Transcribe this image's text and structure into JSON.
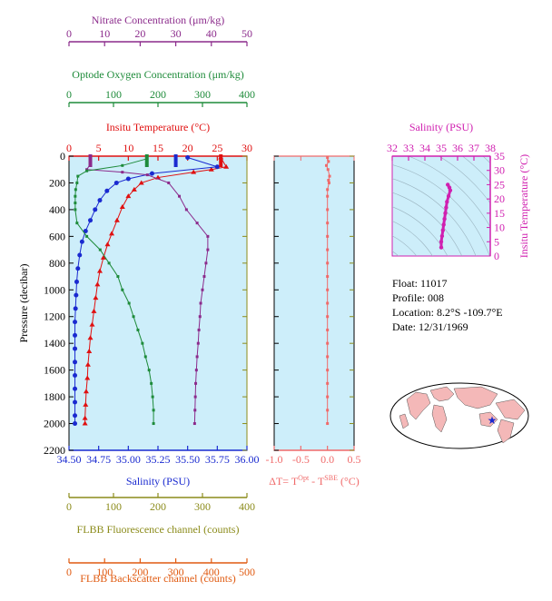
{
  "colors": {
    "nitrate": "#8b2a8b",
    "oxygen": "#1e8b3a",
    "temperature": "#e01010",
    "salinity": "#1a2ad0",
    "delta": "#f06a6a",
    "fluor": "#8b8b1a",
    "backscatter": "#e05a10",
    "inset": "#d020b0",
    "plot_bg": "#cdeefa",
    "land": "#f4b8b8"
  },
  "axes": {
    "nitrate": {
      "label": "Nitrate Concentration (μm/kg)",
      "ticks": [
        "0",
        "10",
        "20",
        "30",
        "40",
        "50"
      ]
    },
    "oxygen": {
      "label": "Optode Oxygen Concentration (μm/kg)",
      "ticks": [
        "0",
        "100",
        "200",
        "300",
        "400"
      ]
    },
    "temperature": {
      "label": "Insitu Temperature (°C)",
      "ticks": [
        "0",
        "5",
        "10",
        "15",
        "20",
        "25",
        "30"
      ]
    },
    "pressure": {
      "label": "Pressure (decibar)",
      "ticks": [
        "0",
        "200",
        "400",
        "600",
        "800",
        "1000",
        "1200",
        "1400",
        "1600",
        "1800",
        "2000",
        "2200"
      ]
    },
    "salinity": {
      "label": "Salinity (PSU)",
      "ticks": [
        "34.50",
        "34.75",
        "35.00",
        "35.25",
        "35.50",
        "35.75",
        "36.00"
      ]
    },
    "delta": {
      "ticks": [
        "-1.0",
        "-0.5",
        "0.0",
        "0.5"
      ],
      "label_pre": "ΔT= T",
      "sup1": "Opt",
      "label_mid": " - T",
      "sup2": "SBE",
      "label_post": " (°C)"
    },
    "fluor": {
      "label": "FLBB Fluorescence channel (counts)",
      "ticks": [
        "0",
        "100",
        "200",
        "300",
        "400"
      ]
    },
    "backscatter": {
      "label": "FLBB Backscatter channel (counts)",
      "ticks": [
        "0",
        "100",
        "200",
        "300",
        "400",
        "500"
      ]
    },
    "inset_salinity": {
      "label": "Salinity (PSU)",
      "ticks": [
        "32",
        "33",
        "34",
        "35",
        "36",
        "37",
        "38"
      ]
    },
    "inset_temperature": {
      "label": "Insitu Temperature (°C)",
      "ticks": [
        "0",
        "5",
        "10",
        "15",
        "20",
        "25",
        "30",
        "35"
      ]
    }
  },
  "info": {
    "float": "Float:  11017",
    "profile": "Profile:  008",
    "location": "Location:  8.2°S  -109.7°E",
    "date": "Date:  12/31/1969"
  },
  "chart_data": [
    {
      "type": "line",
      "title": "",
      "ylabel": "Pressure (decibar)",
      "ylim": [
        2200,
        0
      ],
      "series": [
        {
          "name": "Insitu Temperature (°C)",
          "xlim": [
            0,
            30
          ],
          "points": [
            [
              25.6,
              10
            ],
            [
              26.5,
              80
            ],
            [
              24,
              100
            ],
            [
              21,
              120
            ],
            [
              15,
              160
            ],
            [
              12.2,
              200
            ],
            [
              11,
              250
            ],
            [
              10,
              300
            ],
            [
              9,
              380
            ],
            [
              8.1,
              480
            ],
            [
              7.2,
              580
            ],
            [
              6.5,
              660
            ],
            [
              5.8,
              760
            ],
            [
              5.2,
              860
            ],
            [
              4.8,
              960
            ],
            [
              4.5,
              1060
            ],
            [
              4.2,
              1160
            ],
            [
              3.9,
              1260
            ],
            [
              3.6,
              1360
            ],
            [
              3.4,
              1460
            ],
            [
              3.2,
              1560
            ],
            [
              3.1,
              1660
            ],
            [
              2.9,
              1760
            ],
            [
              2.8,
              1860
            ],
            [
              2.7,
              1960
            ],
            [
              2.7,
              2000
            ]
          ]
        },
        {
          "name": "Salinity (PSU)",
          "xlim": [
            34.5,
            36.0
          ],
          "points": [
            [
              35.5,
              10
            ],
            [
              35.75,
              80
            ],
            [
              35.2,
              130
            ],
            [
              35.0,
              170
            ],
            [
              34.9,
              200
            ],
            [
              34.82,
              260
            ],
            [
              34.76,
              330
            ],
            [
              34.72,
              400
            ],
            [
              34.68,
              480
            ],
            [
              34.64,
              560
            ],
            [
              34.61,
              640
            ],
            [
              34.59,
              740
            ],
            [
              34.575,
              840
            ],
            [
              34.565,
              940
            ],
            [
              34.56,
              1040
            ],
            [
              34.555,
              1140
            ],
            [
              34.55,
              1240
            ],
            [
              34.55,
              1340
            ],
            [
              34.55,
              1440
            ],
            [
              34.55,
              1540
            ],
            [
              34.55,
              1640
            ],
            [
              34.55,
              1740
            ],
            [
              34.55,
              1840
            ],
            [
              34.55,
              1940
            ],
            [
              34.55,
              2000
            ]
          ]
        },
        {
          "name": "Nitrate Concentration (μm/kg)",
          "xlim": [
            0,
            50
          ],
          "points": [
            [
              6,
              20
            ],
            [
              6,
              60
            ],
            [
              5,
              100
            ],
            [
              15,
              120
            ],
            [
              22,
              140
            ],
            [
              28,
              200
            ],
            [
              31,
              300
            ],
            [
              33,
              400
            ],
            [
              36,
              500
            ],
            [
              39,
              600
            ],
            [
              39,
              700
            ],
            [
              38.5,
              800
            ],
            [
              38,
              900
            ],
            [
              37.5,
              1000
            ],
            [
              37,
              1100
            ],
            [
              36.8,
              1200
            ],
            [
              36.5,
              1300
            ],
            [
              36.3,
              1400
            ],
            [
              36,
              1500
            ],
            [
              35.8,
              1600
            ],
            [
              35.6,
              1700
            ],
            [
              35.5,
              1800
            ],
            [
              35.4,
              1900
            ],
            [
              35.3,
              2000
            ]
          ]
        },
        {
          "name": "Optode Oxygen Concentration (μm/kg)",
          "xlim": [
            0,
            400
          ],
          "points": [
            [
              175,
              20
            ],
            [
              120,
              70
            ],
            [
              40,
              110
            ],
            [
              20,
              150
            ],
            [
              18,
              200
            ],
            [
              15,
              250
            ],
            [
              14,
              300
            ],
            [
              14,
              350
            ],
            [
              14,
              400
            ],
            [
              18,
              500
            ],
            [
              40,
              600
            ],
            [
              70,
              700
            ],
            [
              90,
              800
            ],
            [
              110,
              900
            ],
            [
              120,
              1000
            ],
            [
              135,
              1100
            ],
            [
              145,
              1200
            ],
            [
              155,
              1300
            ],
            [
              165,
              1400
            ],
            [
              172,
              1500
            ],
            [
              180,
              1600
            ],
            [
              185,
              1700
            ],
            [
              188,
              1800
            ],
            [
              190,
              1900
            ],
            [
              190,
              2000
            ]
          ]
        },
        {
          "name": "ΔT",
          "xlim": [
            -1.0,
            0.5
          ],
          "points": [
            [
              0,
              10
            ],
            [
              0.02,
              40
            ],
            [
              -0.02,
              70
            ],
            [
              0.01,
              100
            ],
            [
              0.04,
              150
            ],
            [
              0.02,
              180
            ],
            [
              0.03,
              200
            ],
            [
              0,
              250
            ],
            [
              0,
              300
            ],
            [
              0,
              400
            ],
            [
              0,
              500
            ],
            [
              0,
              600
            ],
            [
              0,
              700
            ],
            [
              0,
              800
            ],
            [
              0,
              900
            ],
            [
              0,
              1000
            ],
            [
              0,
              1100
            ],
            [
              0,
              1200
            ],
            [
              0,
              1300
            ],
            [
              0,
              1400
            ],
            [
              0,
              1500
            ],
            [
              0,
              1600
            ],
            [
              0,
              1700
            ],
            [
              0,
              1800
            ],
            [
              0,
              1900
            ],
            [
              0,
              2000
            ]
          ]
        }
      ]
    },
    {
      "type": "scatter",
      "title": "",
      "xlabel": "Salinity (PSU)",
      "ylabel": "Insitu Temperature (°C)",
      "xlim": [
        32,
        38
      ],
      "ylim": [
        0,
        35
      ],
      "points": [
        [
          35.0,
          3
        ],
        [
          35.0,
          5
        ],
        [
          35.05,
          7
        ],
        [
          35.1,
          9
        ],
        [
          35.15,
          11
        ],
        [
          35.2,
          13
        ],
        [
          35.25,
          15
        ],
        [
          35.3,
          17
        ],
        [
          35.35,
          19
        ],
        [
          35.45,
          21
        ],
        [
          35.55,
          23
        ],
        [
          35.5,
          24
        ],
        [
          35.4,
          25
        ]
      ]
    }
  ]
}
